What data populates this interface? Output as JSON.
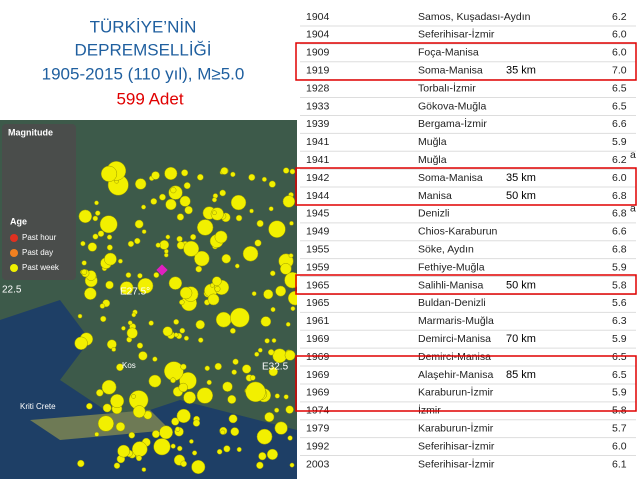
{
  "header": {
    "lines": [
      "TÜRKİYE’NİN",
      "DEPREMSELLİĞİ",
      "1905-2015 (110 yıl), M≥5.0"
    ],
    "count": "599 Adet"
  },
  "map": {
    "legend_title": "Magnitude",
    "age_title": "Age",
    "age_items": [
      "Past hour",
      "Past day",
      "Past week"
    ],
    "labels": [
      "22.5",
      "E27.5°",
      "E32.5",
      "Kos",
      "Kriti Crete"
    ]
  },
  "table": {
    "rows": [
      [
        "1904",
        "Samos, Kuşadası-Aydın",
        "6.2"
      ],
      [
        "1904",
        "Seferihisar-İzmir",
        "6.0"
      ],
      [
        "1909",
        "Foça-Manisa",
        "6.0"
      ],
      [
        "1919",
        "Soma-Manisa",
        "7.0"
      ],
      [
        "1928",
        "Torbalı-İzmir",
        "6.5"
      ],
      [
        "1933",
        "Gökova-Muğla",
        "6.5"
      ],
      [
        "1939",
        "Bergama-İzmir",
        "6.6"
      ],
      [
        "1941",
        "Muğla",
        "5.9"
      ],
      [
        "1941",
        "Muğla",
        "6.2",
        "a"
      ],
      [
        "1942",
        "Soma-Manisa",
        "6.0"
      ],
      [
        "1944",
        "Manisa",
        "6.8"
      ],
      [
        "1945",
        "Denizli",
        "6.8",
        "a"
      ],
      [
        "1949",
        "Chios-Karaburun",
        "6.6"
      ],
      [
        "1955",
        "Söke, Aydın",
        "6.8"
      ],
      [
        "1959",
        "Fethiye-Muğla",
        "5.9"
      ],
      [
        "1965",
        "Salihli-Manisa",
        "5.8"
      ],
      [
        "1965",
        "Buldan-Denizli",
        "5.6"
      ],
      [
        "1961",
        "Marmaris-Muğla",
        "6.3"
      ],
      [
        "1969",
        "Demirci-Manisa",
        "5.9"
      ],
      [
        "1969",
        "Demirci-Manisa",
        "6.5"
      ],
      [
        "1969",
        "Alaşehir-Manisa",
        "6.5"
      ],
      [
        "1969",
        "Karaburun-İzmir",
        "5.9"
      ],
      [
        "1974",
        "İzmir",
        "5.8"
      ],
      [
        "1979",
        "Karaburun-İzmir",
        "5.7"
      ],
      [
        "1992",
        "Seferihisar-İzmir",
        "6.0"
      ],
      [
        "2003",
        "Seferihisar-İzmir",
        "6.1"
      ]
    ]
  },
  "annotations": [
    {
      "row": 3,
      "text": "35 km"
    },
    {
      "row": 9,
      "text": "35 km"
    },
    {
      "row": 10,
      "text": "50 km"
    },
    {
      "row": 15,
      "text": "50 km"
    },
    {
      "row": 18,
      "text": "70 km"
    },
    {
      "row": 20,
      "text": "85 km"
    }
  ]
}
